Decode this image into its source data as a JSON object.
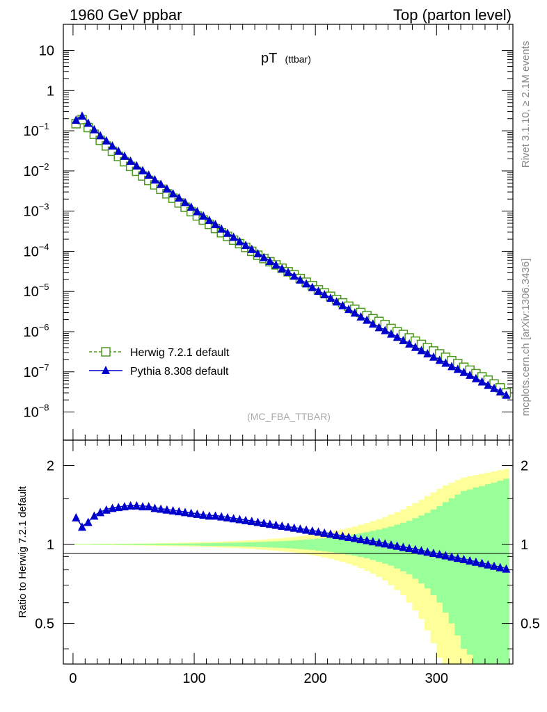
{
  "header": {
    "left": "1960 GeV ppbar",
    "right": "Top (parton level)",
    "side_top": "Rivet 3.1.10, ≥ 2.1M events",
    "side_bottom": "mcplots.cern.ch [arXiv:1306.3436]"
  },
  "chart_data": [
    {
      "type": "scatter",
      "title_main": "pT",
      "title_sub": "(ttbar)",
      "watermark": "(MC_FBA_TTBAR)",
      "xlabel": "",
      "ylabel": "",
      "y_scale": "log",
      "xlim": [
        -8,
        363
      ],
      "ylim_log10": [
        -8.7,
        1.65
      ],
      "y_ticks": [
        {
          "v": 10,
          "label": "10"
        },
        {
          "v": 1,
          "label": "1"
        },
        {
          "v": 0.1,
          "label": "10",
          "exp": "−1"
        },
        {
          "v": 0.01,
          "label": "10",
          "exp": "−2"
        },
        {
          "v": 0.001,
          "label": "10",
          "exp": "−3"
        },
        {
          "v": 0.0001,
          "label": "10",
          "exp": "−4"
        },
        {
          "v": 1e-05,
          "label": "10",
          "exp": "−5"
        },
        {
          "v": 1e-06,
          "label": "10",
          "exp": "−6"
        },
        {
          "v": 1e-07,
          "label": "10",
          "exp": "−7"
        },
        {
          "v": 1e-08,
          "label": "10",
          "exp": "−8"
        }
      ],
      "legend_position": "bottom-left",
      "series": [
        {
          "name": "Herwig 7.2.1 default",
          "color": "#4a9a1a",
          "marker": "open-square",
          "line": "dashed",
          "x": [
            2.5,
            7.5,
            12.5,
            17.5,
            22.5,
            27.5,
            32.5,
            37.5,
            42.5,
            47.5,
            52.5,
            57.5,
            62.5,
            67.5,
            72.5,
            77.5,
            82.5,
            87.5,
            92.5,
            97.5,
            102.5,
            107.5,
            112.5,
            117.5,
            122.5,
            127.5,
            132.5,
            137.5,
            142.5,
            147.5,
            152.5,
            157.5,
            162.5,
            167.5,
            172.5,
            177.5,
            182.5,
            187.5,
            192.5,
            197.5,
            202.5,
            207.5,
            212.5,
            217.5,
            222.5,
            227.5,
            232.5,
            237.5,
            242.5,
            247.5,
            252.5,
            257.5,
            262.5,
            267.5,
            272.5,
            277.5,
            282.5,
            287.5,
            292.5,
            297.5,
            302.5,
            307.5,
            312.5,
            317.5,
            322.5,
            327.5,
            332.5,
            337.5,
            342.5,
            347.5,
            352.5,
            357.5
          ],
          "y": [
            0.15,
            0.19,
            0.12,
            0.082,
            0.058,
            0.042,
            0.031,
            0.023,
            0.017,
            0.013,
            0.0098,
            0.0075,
            0.0058,
            0.0045,
            0.0035,
            0.0027,
            0.0021,
            0.0016,
            0.00125,
            0.00097,
            0.00076,
            0.0006,
            0.00047,
            0.00037,
            0.00029,
            0.000235,
            0.00019,
            0.000155,
            0.000125,
            0.0001,
            8e-05,
            6.6e-05,
            5.5e-05,
            4.6e-05,
            3.8e-05,
            3.1e-05,
            2.6e-05,
            2.1e-05,
            1.7e-05,
            1.4e-05,
            1.1e-05,
            9.2e-06,
            7.6e-06,
            6.3e-06,
            5.2e-06,
            4.3e-06,
            3.6e-06,
            3e-06,
            2.5e-06,
            2.1e-06,
            1.8e-06,
            1.5e-06,
            1.2e-06,
            1e-06,
            8.5e-07,
            7e-07,
            5.8e-07,
            4.8e-07,
            4e-07,
            3.3e-07,
            2.8e-07,
            2.3e-07,
            1.9e-07,
            1.6e-07,
            1.3e-07,
            1.1e-07,
            9e-08,
            7.5e-08,
            6.2e-08,
            5e-08,
            4e-08,
            3e-08
          ]
        },
        {
          "name": "Pythia 8.308 default",
          "color": "#0000cc",
          "marker": "filled-triangle",
          "line": "solid",
          "x": [
            2.5,
            7.5,
            12.5,
            17.5,
            22.5,
            27.5,
            32.5,
            37.5,
            42.5,
            47.5,
            52.5,
            57.5,
            62.5,
            67.5,
            72.5,
            77.5,
            82.5,
            87.5,
            92.5,
            97.5,
            102.5,
            107.5,
            112.5,
            117.5,
            122.5,
            127.5,
            132.5,
            137.5,
            142.5,
            147.5,
            152.5,
            157.5,
            162.5,
            167.5,
            172.5,
            177.5,
            182.5,
            187.5,
            192.5,
            197.5,
            202.5,
            207.5,
            212.5,
            217.5,
            222.5,
            227.5,
            232.5,
            237.5,
            242.5,
            247.5,
            252.5,
            257.5,
            262.5,
            267.5,
            272.5,
            277.5,
            282.5,
            287.5,
            292.5,
            297.5,
            302.5,
            307.5,
            312.5,
            317.5,
            322.5,
            327.5,
            332.5,
            337.5,
            342.5,
            347.5,
            352.5,
            357.5
          ],
          "y": [
            0.19,
            0.24,
            0.16,
            0.11,
            0.078,
            0.058,
            0.043,
            0.032,
            0.024,
            0.018,
            0.0138,
            0.0105,
            0.0081,
            0.0062,
            0.0048,
            0.0037,
            0.0028,
            0.0022,
            0.0017,
            0.0013,
            0.001,
            0.00078,
            0.00061,
            0.00048,
            0.00037,
            0.00029,
            0.00023,
            0.00018,
            0.000145,
            0.000115,
            9e-05,
            7.2e-05,
            5.8e-05,
            4.7e-05,
            3.8e-05,
            3.1e-05,
            2.5e-05,
            2e-05,
            1.6e-05,
            1.3e-05,
            1.05e-05,
            8.6e-06,
            7e-06,
            5.7e-06,
            4.6e-06,
            3.7e-06,
            3e-06,
            2.4e-06,
            2e-06,
            1.6e-06,
            1.3e-06,
            1.1e-06,
            9e-07,
            7.5e-07,
            6.2e-07,
            5.1e-07,
            4.2e-07,
            3.5e-07,
            2.9e-07,
            2.4e-07,
            2e-07,
            1.7e-07,
            1.4e-07,
            1.2e-07,
            1e-07,
            8.5e-08,
            7e-08,
            5.8e-08,
            4.8e-08,
            4e-08,
            3.3e-08,
            2.7e-08
          ]
        }
      ]
    },
    {
      "type": "scatter",
      "ylabel": "Ratio to Herwig 7.2.1 default",
      "y_scale": "log",
      "ylim": [
        0.35,
        2.5
      ],
      "xlim": [
        -8,
        363
      ],
      "x_ticks": [
        {
          "v": 0,
          "label": "0"
        },
        {
          "v": 100,
          "label": "100"
        },
        {
          "v": 200,
          "label": "200"
        },
        {
          "v": 300,
          "label": "300"
        }
      ],
      "y_ticks": [
        {
          "v": 0.5,
          "label": "0.5"
        },
        {
          "v": 1,
          "label": "1"
        },
        {
          "v": 2,
          "label": "2"
        }
      ],
      "bands": [
        {
          "name": "stat-inner",
          "color": "#99ff99",
          "x": [
            2.5,
            7.5,
            12.5,
            17.5,
            22.5,
            27.5,
            32.5,
            37.5,
            42.5,
            47.5,
            52.5,
            57.5,
            62.5,
            67.5,
            72.5,
            77.5,
            82.5,
            87.5,
            92.5,
            97.5,
            102.5,
            107.5,
            112.5,
            117.5,
            122.5,
            127.5,
            132.5,
            137.5,
            142.5,
            147.5,
            152.5,
            157.5,
            162.5,
            167.5,
            172.5,
            177.5,
            182.5,
            187.5,
            192.5,
            197.5,
            202.5,
            207.5,
            212.5,
            217.5,
            222.5,
            227.5,
            232.5,
            237.5,
            242.5,
            247.5,
            252.5,
            257.5,
            262.5,
            267.5,
            272.5,
            277.5,
            282.5,
            287.5,
            292.5,
            297.5,
            302.5,
            307.5,
            312.5,
            317.5,
            322.5,
            327.5,
            332.5,
            337.5,
            342.5,
            347.5,
            352.5,
            357.5
          ],
          "half_width": [
            0.002,
            0.002,
            0.002,
            0.003,
            0.003,
            0.003,
            0.003,
            0.004,
            0.004,
            0.004,
            0.005,
            0.005,
            0.005,
            0.006,
            0.006,
            0.007,
            0.007,
            0.008,
            0.008,
            0.009,
            0.01,
            0.011,
            0.012,
            0.013,
            0.014,
            0.015,
            0.016,
            0.017,
            0.019,
            0.02,
            0.022,
            0.024,
            0.026,
            0.028,
            0.03,
            0.033,
            0.036,
            0.04,
            0.044,
            0.048,
            0.053,
            0.058,
            0.064,
            0.07,
            0.077,
            0.085,
            0.094,
            0.104,
            0.115,
            0.127,
            0.14,
            0.155,
            0.17,
            0.19,
            0.21,
            0.23,
            0.26,
            0.29,
            0.32,
            0.36,
            0.4,
            0.45,
            0.5,
            0.55,
            0.6,
            0.62,
            0.65,
            0.67,
            0.7,
            0.72,
            0.75,
            0.78
          ]
        },
        {
          "name": "stat-outer",
          "color": "#ffff99",
          "x": [
            2.5,
            7.5,
            12.5,
            17.5,
            22.5,
            27.5,
            32.5,
            37.5,
            42.5,
            47.5,
            52.5,
            57.5,
            62.5,
            67.5,
            72.5,
            77.5,
            82.5,
            87.5,
            92.5,
            97.5,
            102.5,
            107.5,
            112.5,
            117.5,
            122.5,
            127.5,
            132.5,
            137.5,
            142.5,
            147.5,
            152.5,
            157.5,
            162.5,
            167.5,
            172.5,
            177.5,
            182.5,
            187.5,
            192.5,
            197.5,
            202.5,
            207.5,
            212.5,
            217.5,
            222.5,
            227.5,
            232.5,
            237.5,
            242.5,
            247.5,
            252.5,
            257.5,
            262.5,
            267.5,
            272.5,
            277.5,
            282.5,
            287.5,
            292.5,
            297.5,
            302.5,
            307.5,
            312.5,
            317.5,
            322.5,
            327.5,
            332.5,
            337.5,
            342.5,
            347.5,
            352.5,
            357.5
          ],
          "half_width": [
            0.004,
            0.004,
            0.004,
            0.005,
            0.005,
            0.006,
            0.006,
            0.007,
            0.007,
            0.008,
            0.009,
            0.009,
            0.01,
            0.011,
            0.012,
            0.013,
            0.014,
            0.015,
            0.016,
            0.018,
            0.019,
            0.021,
            0.022,
            0.024,
            0.026,
            0.028,
            0.03,
            0.032,
            0.035,
            0.038,
            0.041,
            0.045,
            0.049,
            0.053,
            0.058,
            0.063,
            0.069,
            0.075,
            0.082,
            0.09,
            0.099,
            0.108,
            0.118,
            0.13,
            0.142,
            0.156,
            0.171,
            0.188,
            0.206,
            0.226,
            0.248,
            0.272,
            0.3,
            0.33,
            0.36,
            0.4,
            0.44,
            0.48,
            0.53,
            0.58,
            0.63,
            0.68,
            0.72,
            0.76,
            0.8,
            0.82,
            0.84,
            0.86,
            0.88,
            0.9,
            0.92,
            0.94
          ]
        }
      ],
      "series": [
        {
          "name": "Pythia 8.308 default",
          "color": "#0000cc",
          "x": [
            2.5,
            7.5,
            12.5,
            17.5,
            22.5,
            27.5,
            32.5,
            37.5,
            42.5,
            47.5,
            52.5,
            57.5,
            62.5,
            67.5,
            72.5,
            77.5,
            82.5,
            87.5,
            92.5,
            97.5,
            102.5,
            107.5,
            112.5,
            117.5,
            122.5,
            127.5,
            132.5,
            137.5,
            142.5,
            147.5,
            152.5,
            157.5,
            162.5,
            167.5,
            172.5,
            177.5,
            182.5,
            187.5,
            192.5,
            197.5,
            202.5,
            207.5,
            212.5,
            217.5,
            222.5,
            227.5,
            232.5,
            237.5,
            242.5,
            247.5,
            252.5,
            257.5,
            262.5,
            267.5,
            272.5,
            277.5,
            282.5,
            287.5,
            292.5,
            297.5,
            302.5,
            307.5,
            312.5,
            317.5,
            322.5,
            327.5,
            332.5,
            337.5,
            342.5,
            347.5,
            352.5,
            357.5
          ],
          "y": [
            1.27,
            1.17,
            1.22,
            1.29,
            1.33,
            1.36,
            1.38,
            1.39,
            1.4,
            1.41,
            1.41,
            1.4,
            1.4,
            1.38,
            1.37,
            1.36,
            1.35,
            1.34,
            1.33,
            1.32,
            1.31,
            1.3,
            1.29,
            1.29,
            1.28,
            1.27,
            1.26,
            1.25,
            1.24,
            1.23,
            1.22,
            1.21,
            1.2,
            1.19,
            1.18,
            1.17,
            1.16,
            1.15,
            1.14,
            1.13,
            1.12,
            1.11,
            1.1,
            1.09,
            1.08,
            1.07,
            1.06,
            1.05,
            1.04,
            1.03,
            1.02,
            1.01,
            1.0,
            0.99,
            0.98,
            0.97,
            0.96,
            0.95,
            0.94,
            0.93,
            0.92,
            0.91,
            0.9,
            0.89,
            0.88,
            0.87,
            0.86,
            0.85,
            0.84,
            0.83,
            0.82,
            0.81
          ]
        }
      ]
    }
  ]
}
